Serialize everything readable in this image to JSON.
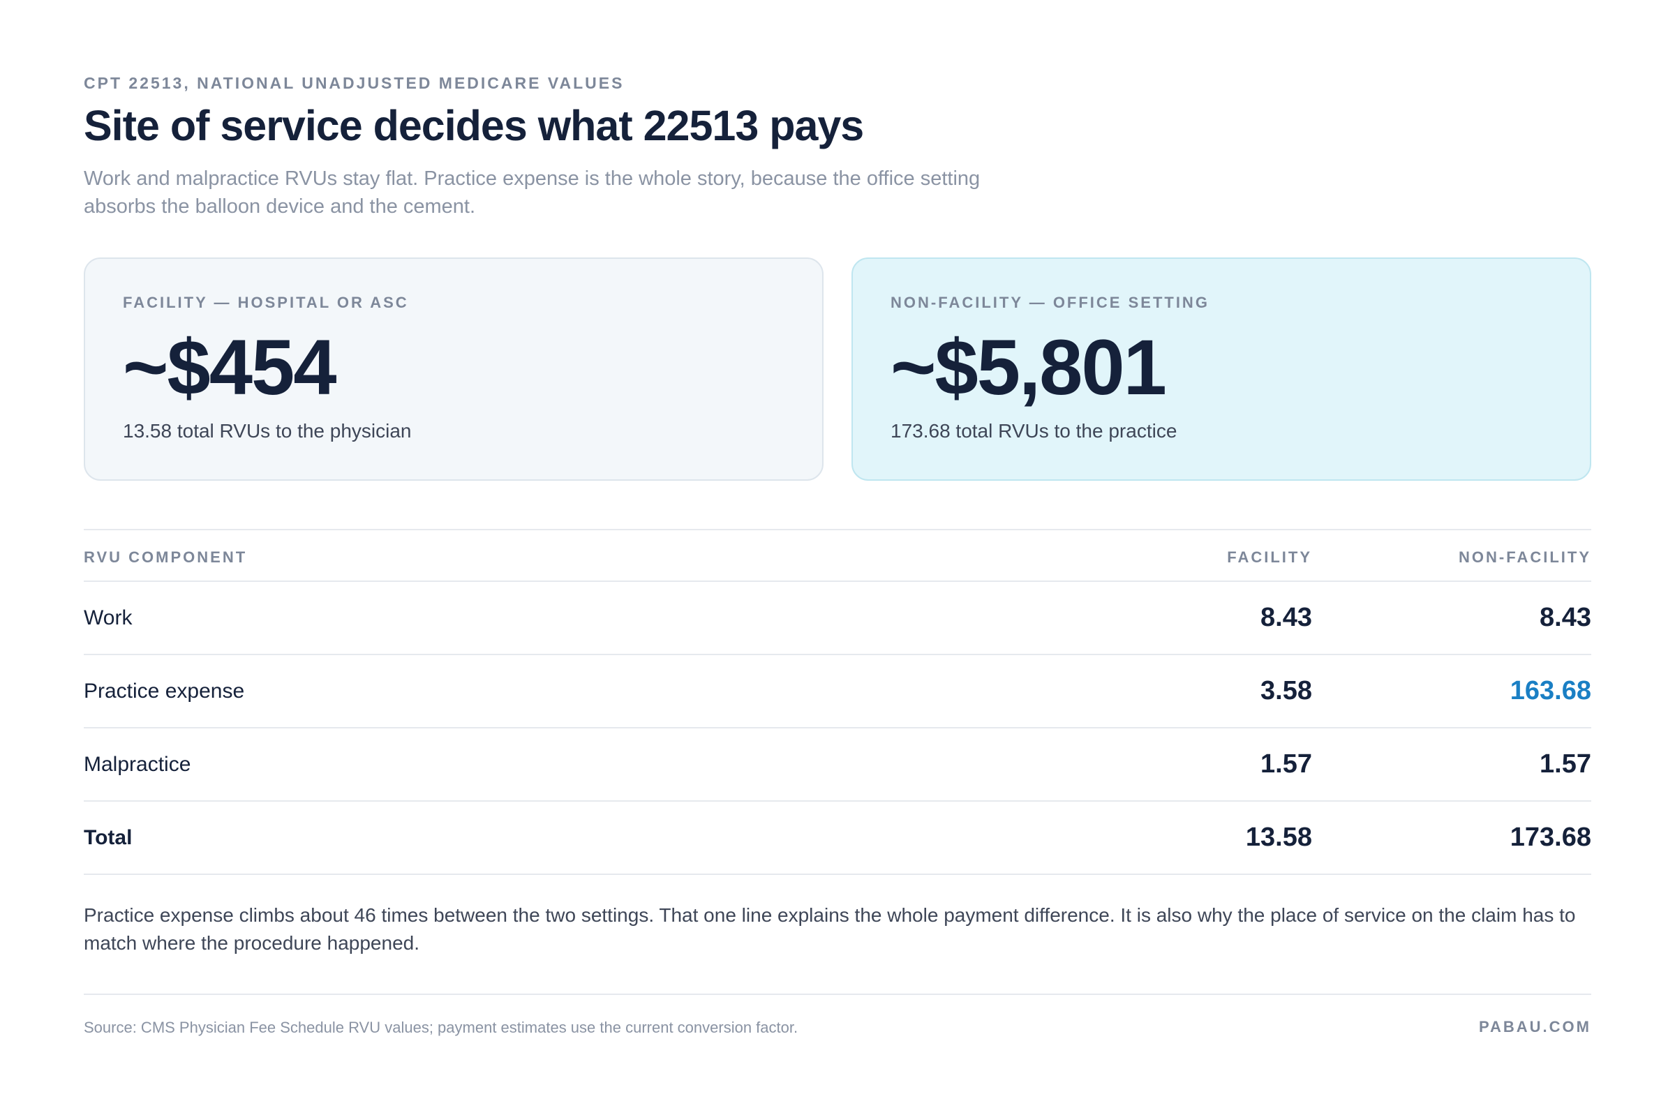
{
  "header": {
    "eyebrow": "CPT 22513, NATIONAL UNADJUSTED MEDICARE VALUES",
    "title": "Site of service decides what 22513 pays",
    "subtitle": "Work and malpractice RVUs stay flat. Practice expense is the whole story, because the office setting absorbs the balloon device and the cement."
  },
  "cards": {
    "facility": {
      "label": "FACILITY — HOSPITAL OR ASC",
      "value": "~$454",
      "note": "13.58 total RVUs to the physician"
    },
    "nonfacility": {
      "label": "NON-FACILITY — OFFICE SETTING",
      "value": "~$5,801",
      "note": "173.68 total RVUs to the practice"
    }
  },
  "table": {
    "columns": [
      "RVU COMPONENT",
      "FACILITY",
      "NON-FACILITY"
    ],
    "rows": [
      {
        "label": "Work",
        "facility": "8.43",
        "nonfacility": "8.43"
      },
      {
        "label": "Practice expense",
        "facility": "3.58",
        "nonfacility": "163.68"
      },
      {
        "label": "Malpractice",
        "facility": "1.57",
        "nonfacility": "1.57"
      },
      {
        "label": "Total",
        "facility": "13.58",
        "nonfacility": "173.68"
      }
    ],
    "highlight_color": "#1a7fc4"
  },
  "footnote": "Practice expense climbs about 46 times between the two settings. That one line explains the whole payment difference. It is also why the place of service on the claim has to match where the procedure happened.",
  "footer": {
    "source": "Source: CMS Physician Fee Schedule RVU values; payment estimates use the current conversion factor.",
    "brand": "PABAU.COM"
  }
}
